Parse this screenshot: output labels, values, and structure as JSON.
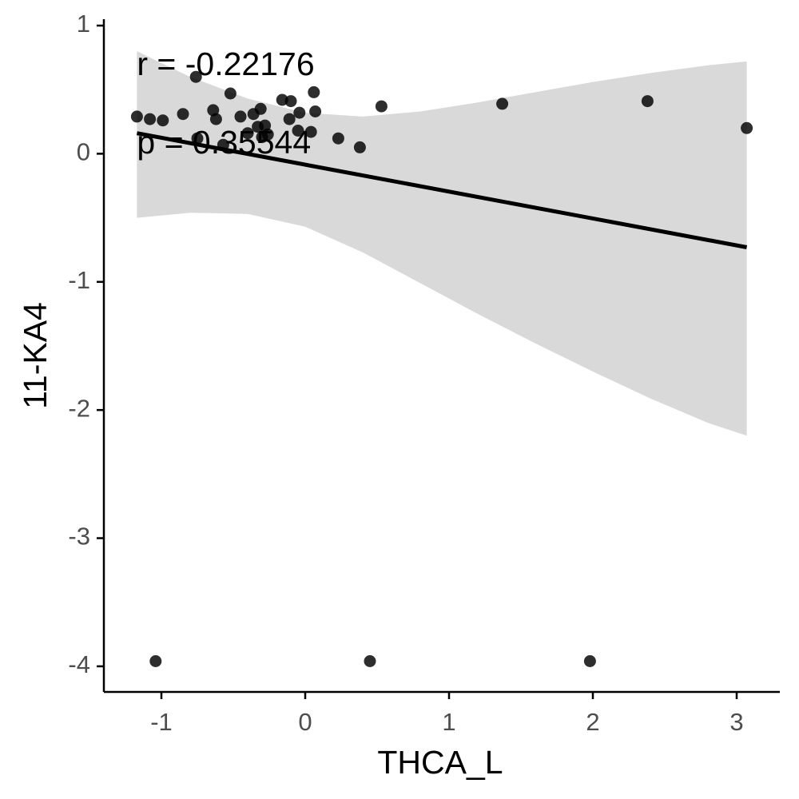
{
  "chart_data": {
    "type": "scatter",
    "title": "",
    "xlabel": "THCA_L",
    "ylabel": "11-KA4",
    "xlim": [
      -1.4,
      3.3
    ],
    "ylim": [
      -4.2,
      1.05
    ],
    "xticks": [
      -1,
      0,
      1,
      2,
      3
    ],
    "xtick_labels": [
      "-1",
      "0",
      "1",
      "2",
      "3"
    ],
    "yticks": [
      1,
      0,
      -1,
      -2,
      -3,
      -4
    ],
    "ytick_labels": [
      "1",
      "0",
      "-1",
      "-2",
      "-3",
      "-4"
    ],
    "grid": false,
    "legend": "none",
    "points": {
      "x": [
        -1.17,
        -1.08,
        -0.99,
        -0.85,
        -0.76,
        -0.75,
        -0.64,
        -0.62,
        -0.57,
        -0.52,
        -0.45,
        -0.4,
        -0.36,
        -0.33,
        -0.31,
        -0.3,
        -0.28,
        -0.26,
        -0.16,
        -0.11,
        -0.1,
        -0.05,
        -0.04,
        0.04,
        0.06,
        0.07,
        0.23,
        0.38,
        0.53,
        1.37,
        2.38,
        3.07,
        -1.04,
        0.45,
        1.98
      ],
      "y": [
        0.29,
        0.27,
        0.26,
        0.31,
        0.6,
        0.12,
        0.34,
        0.27,
        0.07,
        0.47,
        0.29,
        0.16,
        0.31,
        0.21,
        0.35,
        0.13,
        0.22,
        0.15,
        0.42,
        0.27,
        0.41,
        0.18,
        0.32,
        0.17,
        0.48,
        0.33,
        0.12,
        0.05,
        0.37,
        0.39,
        0.41,
        0.2,
        -3.96,
        -3.96,
        -3.96
      ]
    },
    "fit_line": {
      "x": [
        -1.17,
        3.07
      ],
      "y": [
        0.16,
        -0.73
      ]
    },
    "confidence_band": {
      "x": [
        -1.17,
        -0.8,
        -0.4,
        0.0,
        0.4,
        0.8,
        1.2,
        1.6,
        2.0,
        2.4,
        2.8,
        3.07
      ],
      "upper": [
        0.8,
        0.6,
        0.43,
        0.32,
        0.29,
        0.33,
        0.4,
        0.48,
        0.56,
        0.63,
        0.69,
        0.72
      ],
      "lower": [
        -0.5,
        -0.46,
        -0.47,
        -0.57,
        -0.77,
        -1.01,
        -1.25,
        -1.48,
        -1.7,
        -1.91,
        -2.1,
        -2.2
      ]
    },
    "colors": {
      "points": "#000000",
      "fit_line": "#000000",
      "band": "#d9d9d9",
      "axis": "#000000",
      "tick_label": "#4d4d4d"
    },
    "annotations": [
      {
        "text": "r = -0.22176",
        "x": -1.17,
        "y": 0.68
      },
      {
        "text": "p = 0.35544",
        "x": -1.17,
        "y": 0.07
      }
    ]
  }
}
